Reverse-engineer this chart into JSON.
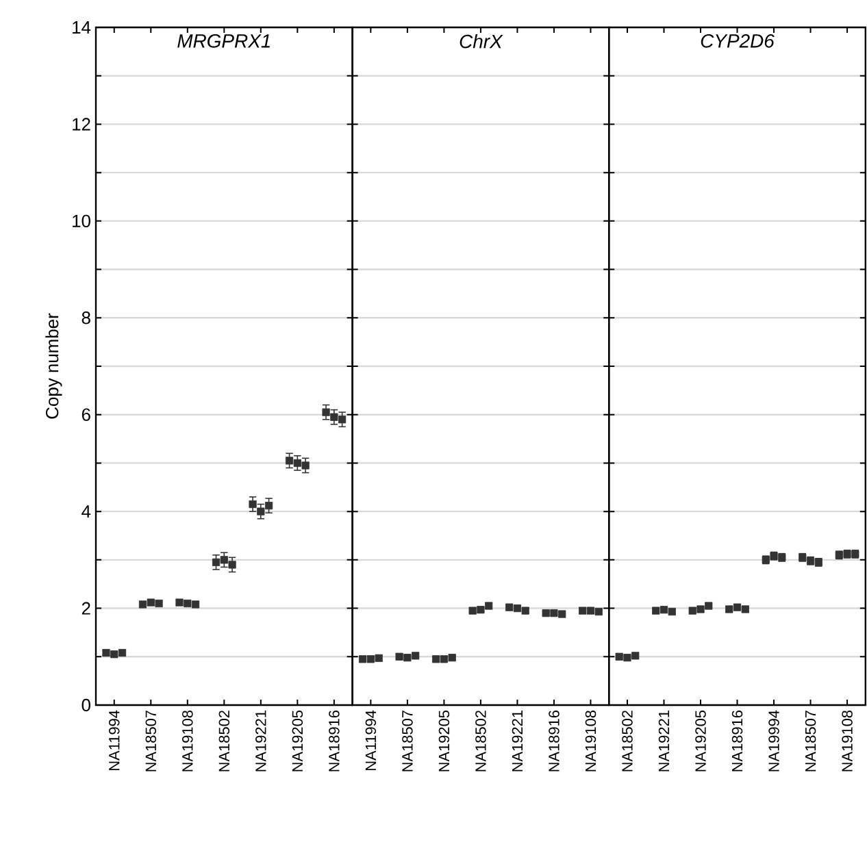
{
  "chart_data": [
    {
      "type": "scatter",
      "title": "MRGPRX1",
      "ylabel": "Copy number",
      "categories": [
        "NA11994",
        "NA18507",
        "NA19108",
        "NA18502",
        "NA19221",
        "NA19205",
        "NA18916"
      ],
      "ylim": [
        0,
        14
      ],
      "yticks": [
        0,
        {
          "value": 1,
          "label": null
        },
        2,
        {
          "value": 3,
          "label": null
        },
        4,
        {
          "value": 5,
          "label": null
        },
        6,
        {
          "value": 7,
          "label": null
        },
        8,
        {
          "value": 9,
          "label": null
        },
        10,
        {
          "value": 11,
          "label": null
        },
        12,
        {
          "value": 13,
          "label": null
        },
        14
      ],
      "grid": "y",
      "marker": "square",
      "series": [
        {
          "color": "#333333",
          "values": [
            1.08,
            2.08,
            2.12,
            2.95,
            4.15,
            5.05,
            6.05
          ],
          "errors": [
            0.05,
            0.05,
            0.05,
            0.15,
            0.15,
            0.15,
            0.15
          ]
        },
        {
          "color": "#333333",
          "values": [
            1.05,
            2.12,
            2.1,
            3.0,
            4.0,
            5.0,
            5.95
          ],
          "errors": [
            0.05,
            0.05,
            0.05,
            0.15,
            0.15,
            0.15,
            0.15
          ]
        },
        {
          "color": "#333333",
          "values": [
            1.08,
            2.1,
            2.08,
            2.9,
            4.12,
            4.95,
            5.9
          ],
          "errors": [
            0.05,
            0.05,
            0.05,
            0.15,
            0.15,
            0.15,
            0.15
          ]
        }
      ]
    },
    {
      "type": "scatter",
      "title": "ChrX",
      "categories": [
        "NA11994",
        "NA18507",
        "NA19205",
        "NA18502",
        "NA19221",
        "NA18916",
        "NA19108"
      ],
      "ylim": [
        0,
        14
      ],
      "yticks": [
        0,
        {
          "value": 1,
          "label": null
        },
        2,
        {
          "value": 3,
          "label": null
        },
        4,
        {
          "value": 5,
          "label": null
        },
        6,
        {
          "value": 7,
          "label": null
        },
        8,
        {
          "value": 9,
          "label": null
        },
        10,
        {
          "value": 11,
          "label": null
        },
        12,
        {
          "value": 13,
          "label": null
        },
        14
      ],
      "grid": "y",
      "marker": "square",
      "tick_labels": "x",
      "series": [
        {
          "color": "#333333",
          "values": [
            0.95,
            1.0,
            0.95,
            1.95,
            2.02,
            1.9,
            1.95
          ],
          "errors": [
            0.05,
            0.05,
            0.05,
            0.05,
            0.05,
            0.05,
            0.05
          ]
        },
        {
          "color": "#333333",
          "values": [
            0.95,
            0.98,
            0.95,
            1.97,
            2.0,
            1.9,
            1.95
          ],
          "errors": [
            0.05,
            0.05,
            0.05,
            0.05,
            0.05,
            0.05,
            0.05
          ]
        },
        {
          "color": "#333333",
          "values": [
            0.97,
            1.02,
            0.98,
            2.05,
            1.95,
            1.88,
            1.93
          ],
          "errors": [
            0.05,
            0.05,
            0.05,
            0.05,
            0.05,
            0.05,
            0.05
          ]
        }
      ]
    },
    {
      "type": "scatter",
      "title": "CYP2D6",
      "categories": [
        "NA18502",
        "NA19221",
        "NA19205",
        "NA18916",
        "NA19994",
        "NA18507",
        "NA19108"
      ],
      "ylim": [
        0,
        14
      ],
      "yticks": [
        0,
        {
          "value": 1,
          "label": null
        },
        2,
        {
          "value": 3,
          "label": null
        },
        4,
        {
          "value": 5,
          "label": null
        },
        6,
        {
          "value": 7,
          "label": null
        },
        8,
        {
          "value": 9,
          "label": null
        },
        10,
        {
          "value": 11,
          "label": null
        },
        12,
        {
          "value": 13,
          "label": null
        },
        14
      ],
      "grid": "y",
      "marker": "square",
      "tick_labels": "x",
      "series": [
        {
          "color": "#333333",
          "values": [
            1.0,
            1.95,
            1.95,
            1.98,
            3.0,
            3.05,
            3.1
          ],
          "errors": [
            0.05,
            0.05,
            0.05,
            0.05,
            0.08,
            0.08,
            0.08
          ]
        },
        {
          "color": "#333333",
          "values": [
            0.98,
            1.97,
            1.98,
            2.02,
            3.08,
            2.98,
            3.12
          ],
          "errors": [
            0.05,
            0.05,
            0.05,
            0.05,
            0.08,
            0.08,
            0.08
          ]
        },
        {
          "color": "#333333",
          "values": [
            1.02,
            1.93,
            2.05,
            1.98,
            3.05,
            2.95,
            3.12
          ],
          "errors": [
            0.05,
            0.05,
            0.05,
            0.05,
            0.08,
            0.08,
            0.08
          ]
        }
      ]
    }
  ]
}
